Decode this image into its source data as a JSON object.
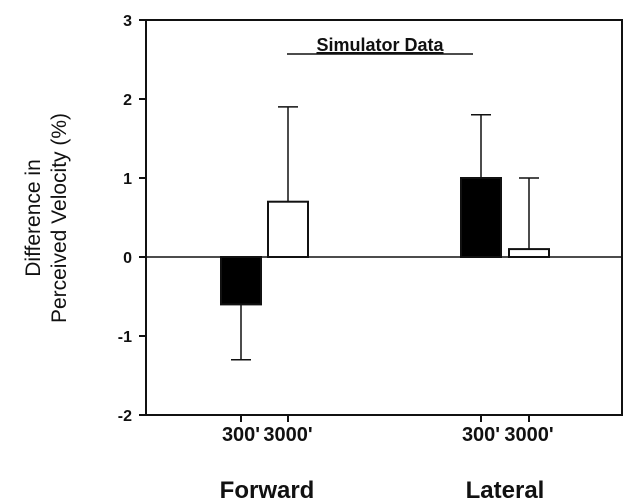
{
  "chart_data": {
    "type": "bar",
    "title": "Simulator Data",
    "ylabel": [
      "Difference in",
      "Perceived Velocity (%)"
    ],
    "ylim": [
      -2,
      3
    ],
    "yticks": [
      -2,
      -1,
      0,
      1,
      2,
      3
    ],
    "groups": [
      "Forward",
      "Lateral"
    ],
    "categories": [
      "300'",
      "3000'",
      "300'",
      "3000'"
    ],
    "bars": [
      {
        "group": "Forward",
        "label": "300'",
        "value": -0.6,
        "error": 0.7,
        "fill": "#000000"
      },
      {
        "group": "Forward",
        "label": "3000'",
        "value": 0.7,
        "error": 1.2,
        "fill": "#ffffff"
      },
      {
        "group": "Lateral",
        "label": "300'",
        "value": 1.0,
        "error": 0.8,
        "fill": "#000000"
      },
      {
        "group": "Lateral",
        "label": "3000'",
        "value": 0.1,
        "error": 0.9,
        "fill": "#ffffff"
      }
    ],
    "grid": false,
    "zero_line": true
  }
}
